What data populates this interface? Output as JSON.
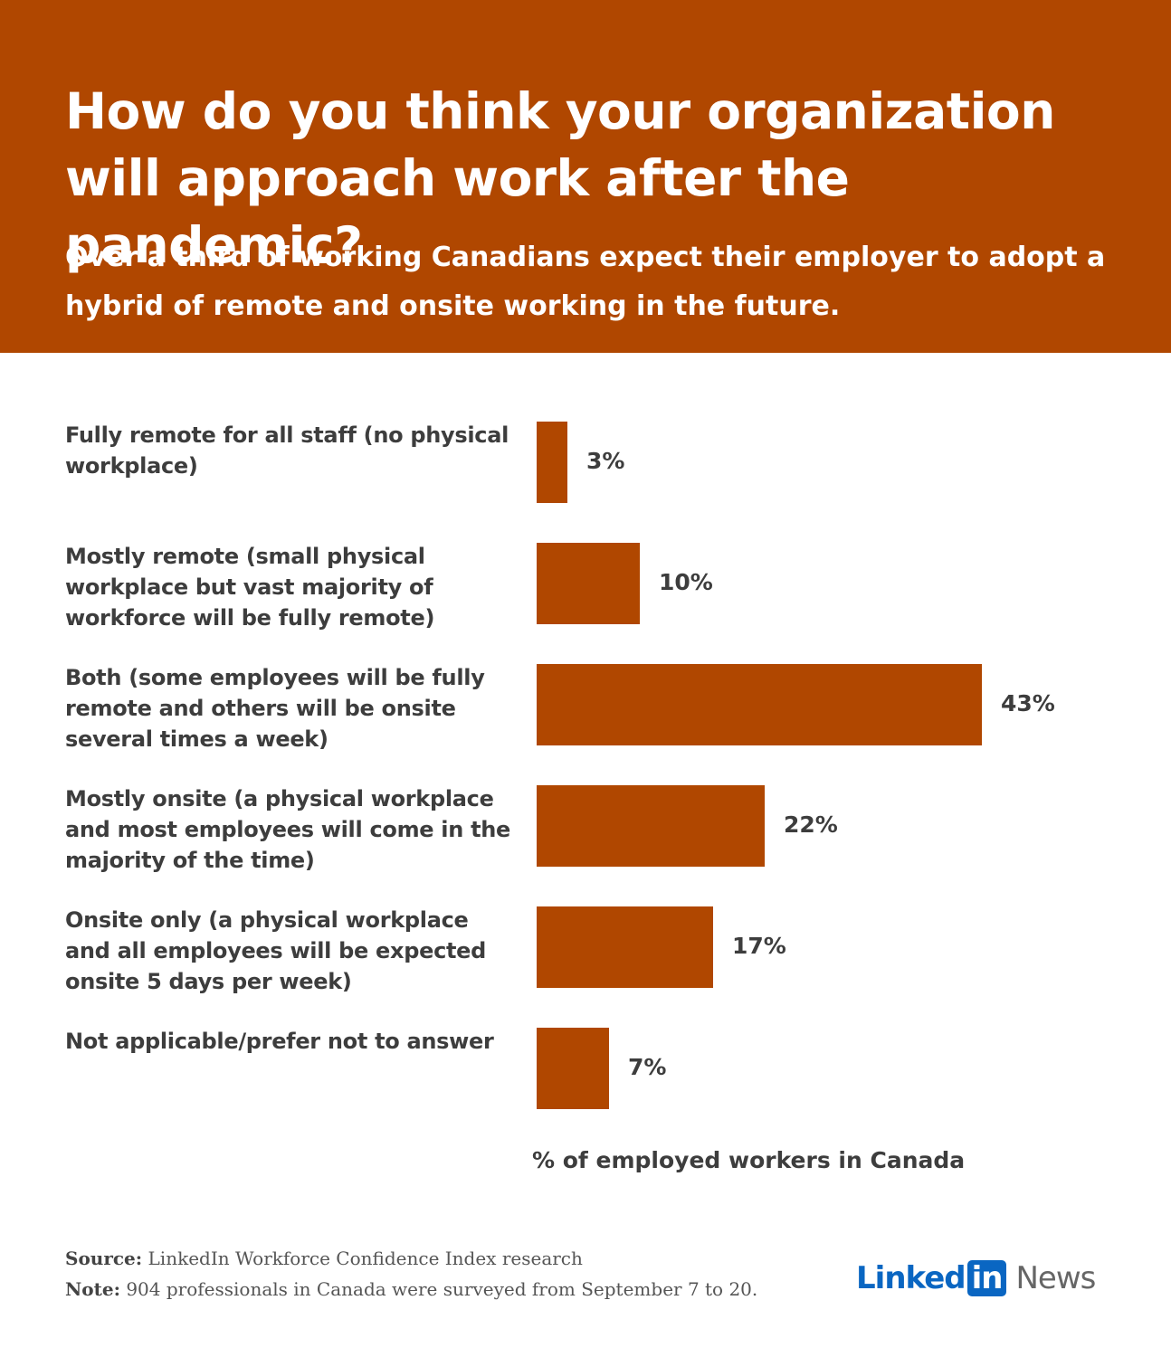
{
  "header": {
    "title": "How do you think your organization will approach work after the pandemic?",
    "subtitle": "Over a third of working Canadians expect their employer to adopt a hybrid of remote and onsite working in the future."
  },
  "chart_data": {
    "type": "bar",
    "orientation": "horizontal",
    "categories": [
      "Fully remote for all staff (no physical workplace)",
      "Mostly remote (small physical workplace but vast majority of workforce will be fully remote)",
      "Both (some employees will be fully remote and others will be onsite several times a week)",
      "Mostly onsite (a physical workplace and most employees will come in the majority of the time)",
      "Onsite only (a physical workplace and all employees will be expected onsite 5 days per week)",
      "Not applicable/prefer not to answer"
    ],
    "values": [
      3,
      10,
      43,
      22,
      17,
      7
    ],
    "value_labels": [
      "3%",
      "10%",
      "43%",
      "22%",
      "17%",
      "7%"
    ],
    "xlabel": "% of employed workers in Canada",
    "xlim": [
      0,
      43
    ],
    "grid": false,
    "bar_color": "#b04700"
  },
  "footer": {
    "source_key": "Source:",
    "source_text": " LinkedIn Workforce Confidence Index research",
    "note_key": "Note:",
    "note_text": " 904 professionals in Canada were surveyed from September 7 to 20."
  },
  "logo": {
    "linked": "Linked",
    "in": "in",
    "news": "News"
  },
  "colors": {
    "header_bg": "#b04700",
    "bar": "#b04700",
    "text": "#3d3d3d",
    "linkedin_blue": "#0a66c2"
  }
}
